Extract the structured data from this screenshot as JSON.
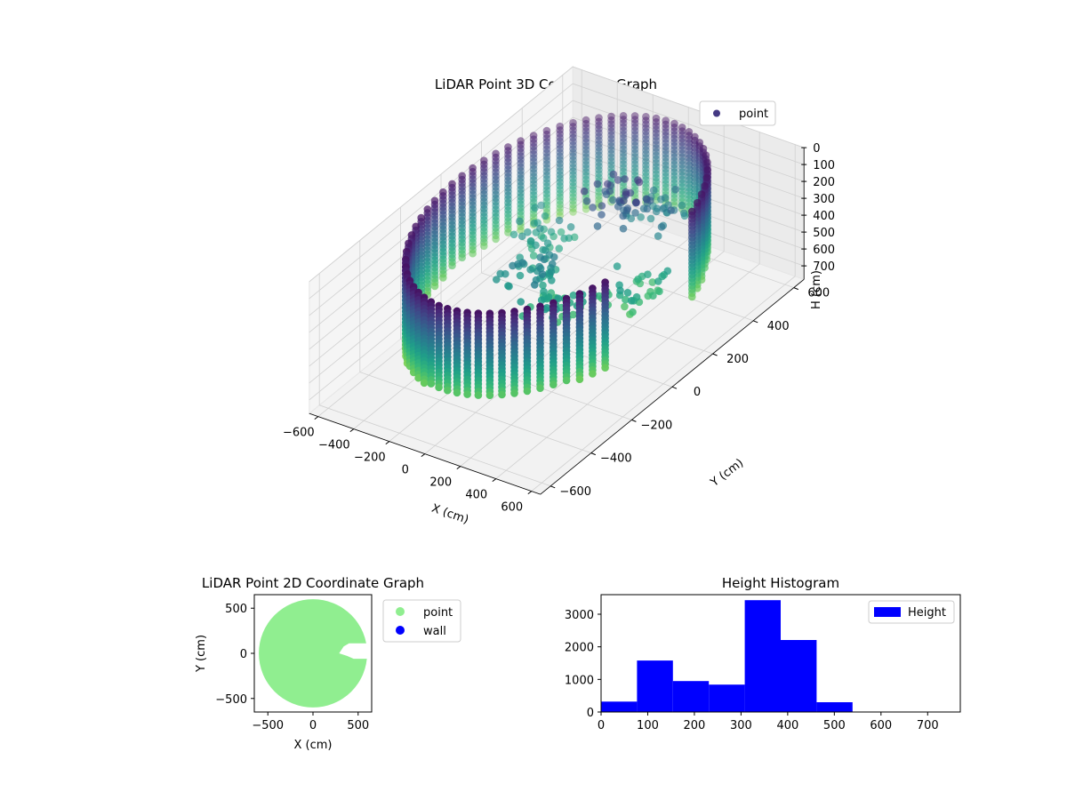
{
  "chart_data": [
    {
      "type": "scatter",
      "title": "LiDAR Point 3D Coordinate Graph",
      "xlabel": "X (cm)",
      "ylabel": "Y (cm)",
      "zlabel": "H (cm)",
      "xlim": [
        -650,
        650
      ],
      "ylim": [
        -650,
        650
      ],
      "zlim": [
        0,
        780
      ],
      "z_inverted": true,
      "x_ticks": [
        -600,
        -400,
        -200,
        0,
        200,
        400,
        600
      ],
      "y_ticks": [
        -600,
        -400,
        -200,
        0,
        200,
        400,
        600
      ],
      "z_ticks": [
        0,
        100,
        200,
        300,
        400,
        500,
        600,
        700
      ],
      "grid": true,
      "legend": {
        "placement": "top-right",
        "entries": [
          {
            "label": "point",
            "color": "#443983"
          }
        ]
      },
      "colormap": "viridis",
      "wall_radius": 560,
      "wall_height_range": [
        0,
        550
      ],
      "gap_angle_range_deg": [
        -20,
        20
      ],
      "interior_clusters": [
        {
          "x": -250,
          "y": 150,
          "h": 350
        },
        {
          "x": 50,
          "y": 250,
          "h": 150
        },
        {
          "x": 150,
          "y": 350,
          "h": 250
        },
        {
          "x": 300,
          "y": 100,
          "h": 420
        },
        {
          "x": 100,
          "y": -100,
          "h": 400
        },
        {
          "x": -100,
          "y": -50,
          "h": 330
        }
      ]
    },
    {
      "type": "scatter",
      "title": "LiDAR Point 2D Coordinate Graph",
      "xlabel": "X (cm)",
      "ylabel": "Y (cm)",
      "xlim": [
        -650,
        650
      ],
      "ylim": [
        -650,
        650
      ],
      "x_ticks": [
        -500,
        0,
        500
      ],
      "y_ticks": [
        -500,
        0,
        500
      ],
      "radius": 600,
      "gap": {
        "x_from": 290,
        "y_range": [
          -60,
          110
        ]
      },
      "legend": {
        "placement": "outside-right",
        "entries": [
          {
            "label": "point",
            "color": "#90ee90"
          },
          {
            "label": "wall",
            "color": "#0000ff"
          }
        ]
      }
    },
    {
      "type": "bar",
      "title": "Height Histogram",
      "xlabel": "",
      "ylabel": "",
      "bin_edges": [
        0,
        77,
        154,
        231,
        308,
        385,
        462,
        539,
        616,
        693,
        770
      ],
      "values": [
        320,
        1580,
        950,
        840,
        3430,
        2210,
        300,
        0,
        0,
        0
      ],
      "xlim": [
        0,
        770
      ],
      "ylim": [
        0,
        3600
      ],
      "x_ticks": [
        0,
        100,
        200,
        300,
        400,
        500,
        600,
        700
      ],
      "y_ticks": [
        0,
        1000,
        2000,
        3000
      ],
      "color": "#0000ff",
      "legend": {
        "placement": "top-right",
        "entries": [
          {
            "label": "Height",
            "color": "#0000ff"
          }
        ]
      }
    }
  ]
}
